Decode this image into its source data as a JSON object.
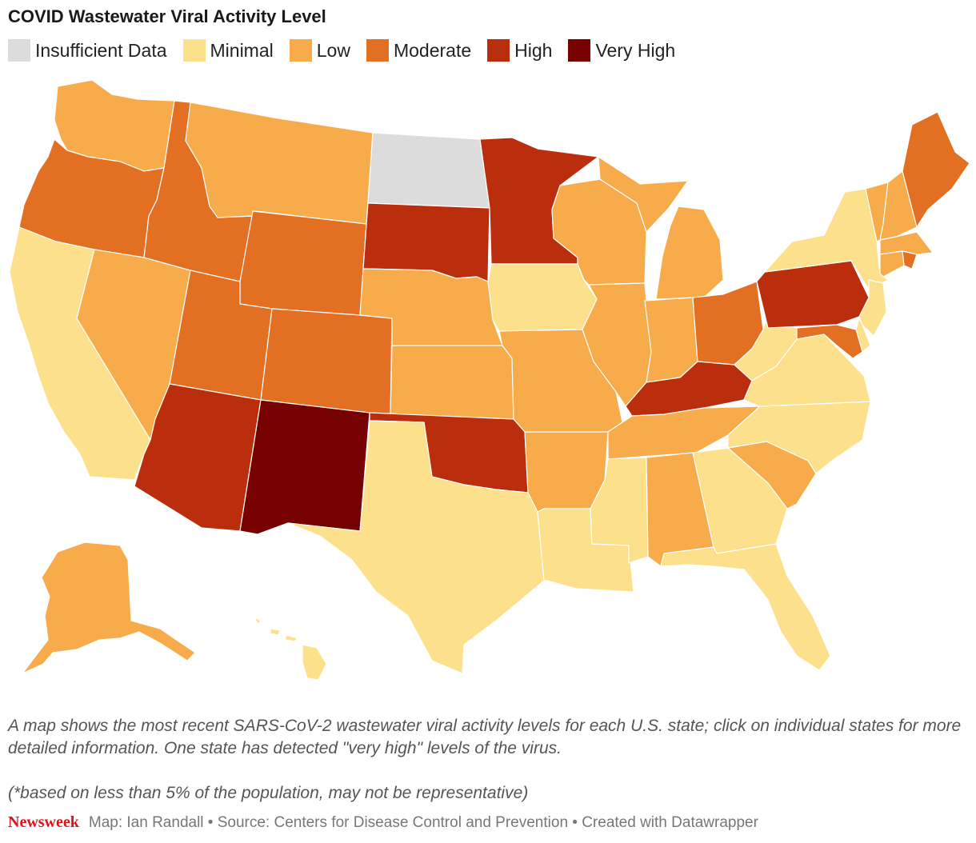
{
  "title": "COVID Wastewater Viral Activity Level",
  "legend": [
    {
      "label": "Insufficient Data",
      "color": "#dcdcdc"
    },
    {
      "label": "Minimal",
      "color": "#fde08b"
    },
    {
      "label": "Low",
      "color": "#f7ab4a"
    },
    {
      "label": "Moderate",
      "color": "#e36f22"
    },
    {
      "label": "High",
      "color": "#bb2e0d"
    },
    {
      "label": "Very High",
      "color": "#770000"
    }
  ],
  "states": [
    {
      "name": "Washington",
      "level": "Low"
    },
    {
      "name": "Oregon",
      "level": "Moderate"
    },
    {
      "name": "California",
      "level": "Minimal"
    },
    {
      "name": "Nevada",
      "level": "Low"
    },
    {
      "name": "Idaho",
      "level": "Moderate"
    },
    {
      "name": "Montana",
      "level": "Low"
    },
    {
      "name": "Wyoming",
      "level": "Moderate"
    },
    {
      "name": "Utah",
      "level": "Moderate"
    },
    {
      "name": "Arizona",
      "level": "High"
    },
    {
      "name": "Colorado",
      "level": "Moderate"
    },
    {
      "name": "New Mexico",
      "level": "Very High"
    },
    {
      "name": "North Dakota",
      "level": "Insufficient Data"
    },
    {
      "name": "South Dakota",
      "level": "High"
    },
    {
      "name": "Nebraska",
      "level": "Low"
    },
    {
      "name": "Kansas",
      "level": "Low"
    },
    {
      "name": "Oklahoma",
      "level": "High"
    },
    {
      "name": "Texas",
      "level": "Minimal"
    },
    {
      "name": "Minnesota",
      "level": "High"
    },
    {
      "name": "Iowa",
      "level": "Minimal"
    },
    {
      "name": "Missouri",
      "level": "Low"
    },
    {
      "name": "Arkansas",
      "level": "Low"
    },
    {
      "name": "Louisiana",
      "level": "Minimal"
    },
    {
      "name": "Wisconsin",
      "level": "Low"
    },
    {
      "name": "Illinois",
      "level": "Low"
    },
    {
      "name": "Michigan",
      "level": "Low"
    },
    {
      "name": "Indiana",
      "level": "Low"
    },
    {
      "name": "Ohio",
      "level": "Moderate"
    },
    {
      "name": "Kentucky",
      "level": "High"
    },
    {
      "name": "Tennessee",
      "level": "Low"
    },
    {
      "name": "Mississippi",
      "level": "Minimal"
    },
    {
      "name": "Alabama",
      "level": "Low"
    },
    {
      "name": "Georgia",
      "level": "Minimal"
    },
    {
      "name": "Florida",
      "level": "Minimal"
    },
    {
      "name": "South Carolina",
      "level": "Low"
    },
    {
      "name": "North Carolina",
      "level": "Minimal"
    },
    {
      "name": "Virginia",
      "level": "Minimal"
    },
    {
      "name": "West Virginia",
      "level": "Minimal"
    },
    {
      "name": "Pennsylvania",
      "level": "High"
    },
    {
      "name": "New York",
      "level": "Minimal"
    },
    {
      "name": "Vermont",
      "level": "Low"
    },
    {
      "name": "New Hampshire",
      "level": "Low"
    },
    {
      "name": "Maine",
      "level": "Moderate"
    },
    {
      "name": "Massachusetts",
      "level": "Low"
    },
    {
      "name": "Rhode Island",
      "level": "Moderate"
    },
    {
      "name": "Connecticut",
      "level": "Low"
    },
    {
      "name": "New Jersey",
      "level": "Minimal"
    },
    {
      "name": "Delaware",
      "level": "Minimal"
    },
    {
      "name": "Maryland",
      "level": "Moderate"
    },
    {
      "name": "Alaska",
      "level": "Low"
    },
    {
      "name": "Hawaii",
      "level": "Minimal"
    }
  ],
  "caption": "A map shows the most recent SARS-CoV-2 wastewater viral activity levels for each U.S. state; click on individual states for more detailed information. One state has detected \"very high\" levels of the virus.",
  "note": "(*based on less than 5% of the population, may not be representative)",
  "footer": {
    "brand": "Newsweek",
    "credit": "Map: Ian Randall • Source: Centers for Disease Control and Prevention • Created with Datawrapper"
  }
}
